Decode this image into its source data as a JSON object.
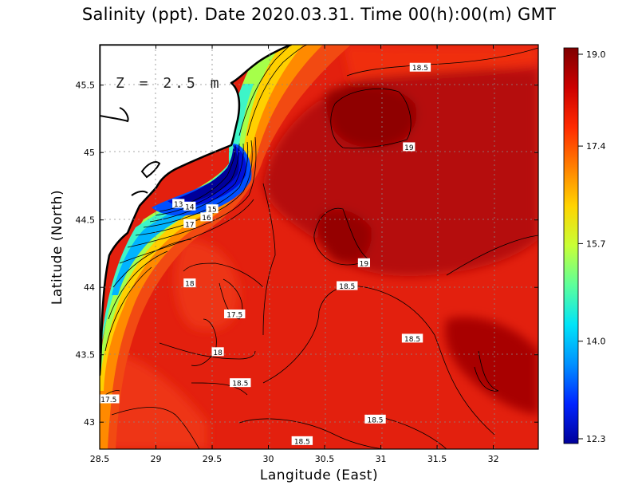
{
  "title": "Salinity (ppt). Date 2020.03.31. Time 00(h):00(m) GMT",
  "depth_label": "Z = 2.5 m",
  "xlabel": "Langitude (East)",
  "ylabel": "Latitude (North)",
  "map": {
    "lon_range": [
      28.5,
      32.4
    ],
    "lat_range": [
      42.8,
      45.8
    ],
    "lon_ticks": [
      "28.5",
      "29",
      "29.5",
      "30",
      "30.5",
      "31",
      "31.5",
      "32"
    ],
    "lat_ticks": [
      "43",
      "43.5",
      "44",
      "44.5",
      "45",
      "45.5"
    ],
    "grid": "dotted",
    "land_color": "#ffffff",
    "sea_base_color": "#e3200e",
    "contour_labels": [
      {
        "text": "18.5",
        "lon": 31.35,
        "lat": 45.63
      },
      {
        "text": "19",
        "lon": 31.25,
        "lat": 45.04
      },
      {
        "text": "19",
        "lon": 30.85,
        "lat": 44.18
      },
      {
        "text": "18.5",
        "lon": 30.7,
        "lat": 44.01
      },
      {
        "text": "18.5",
        "lon": 31.28,
        "lat": 43.62
      },
      {
        "text": "18",
        "lon": 29.3,
        "lat": 44.03
      },
      {
        "text": "17.5",
        "lon": 29.7,
        "lat": 43.8
      },
      {
        "text": "18",
        "lon": 29.55,
        "lat": 43.52
      },
      {
        "text": "18.5",
        "lon": 29.75,
        "lat": 43.29
      },
      {
        "text": "17.5",
        "lon": 28.58,
        "lat": 43.17
      },
      {
        "text": "18.5",
        "lon": 30.95,
        "lat": 43.02
      },
      {
        "text": "18.5",
        "lon": 30.3,
        "lat": 42.86
      },
      {
        "text": "14",
        "lon": 29.3,
        "lat": 44.6
      },
      {
        "text": "13",
        "lon": 29.2,
        "lat": 44.62
      },
      {
        "text": "15",
        "lon": 29.5,
        "lat": 44.58
      },
      {
        "text": "16",
        "lon": 29.45,
        "lat": 44.52
      },
      {
        "text": "17",
        "lon": 29.3,
        "lat": 44.47
      }
    ]
  },
  "colorbar": {
    "min": 12.3,
    "max": 19.0,
    "tick_labels": [
      "19.0",
      "17.4",
      "15.7",
      "14.0",
      "12.3"
    ],
    "colors": [
      "#7f0000",
      "#cc0000",
      "#ff2a00",
      "#ff7f00",
      "#ffd400",
      "#c8ff36",
      "#5cff9b",
      "#00e4f8",
      "#0090ff",
      "#0024ff",
      "#00009a"
    ]
  }
}
